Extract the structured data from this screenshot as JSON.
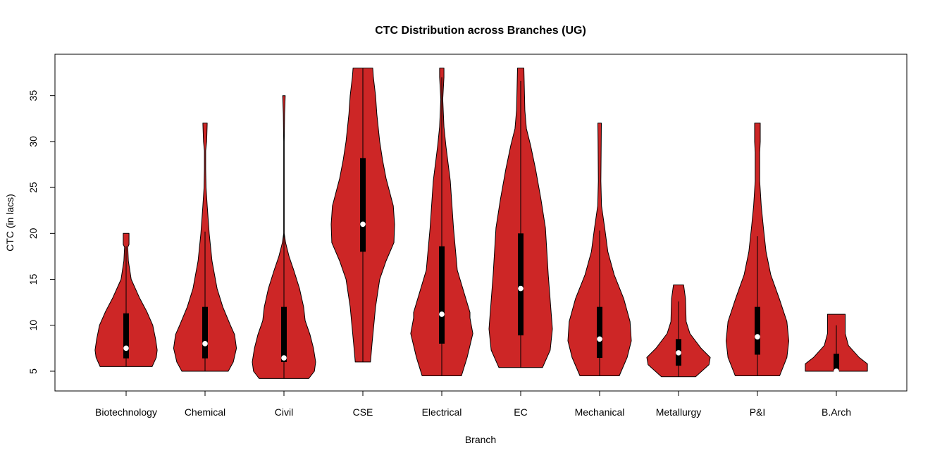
{
  "chart_data": {
    "type": "violin",
    "title": "CTC Distribution across Branches (UG)",
    "xlabel": "Branch",
    "ylabel": "CTC (in lacs)",
    "ylim": [
      2.85,
      39.5
    ],
    "yticks": [
      5,
      10,
      15,
      20,
      25,
      30,
      35
    ],
    "grid": false,
    "fill_color": "#CD2626",
    "categories": [
      "Biotechnology",
      "Chemical",
      "Civil",
      "CSE",
      "Electrical",
      "EC",
      "Mechanical",
      "Metallurgy",
      "P&I",
      "B.Arch"
    ],
    "series": [
      {
        "category": "Biotechnology",
        "min": 5.5,
        "max": 20,
        "q1": 6.4,
        "median": 7.5,
        "q3": 11.3,
        "whisker_low": 5.5,
        "whisker_high": 18.6,
        "density": [
          [
            5.5,
            0.82
          ],
          [
            6.5,
            0.95
          ],
          [
            7.3,
            0.98
          ],
          [
            8.5,
            0.93
          ],
          [
            10,
            0.84
          ],
          [
            11.5,
            0.65
          ],
          [
            13,
            0.42
          ],
          [
            15,
            0.16
          ],
          [
            17,
            0.07
          ],
          [
            18.5,
            0.05
          ],
          [
            18.8,
            0.09
          ],
          [
            20,
            0.09
          ]
        ]
      },
      {
        "category": "Chemical",
        "min": 5,
        "max": 32,
        "q1": 6.4,
        "median": 8,
        "q3": 12,
        "whisker_low": 5,
        "whisker_high": 20.2,
        "density": [
          [
            5,
            0.73
          ],
          [
            6,
            0.89
          ],
          [
            7.5,
            0.99
          ],
          [
            9,
            0.93
          ],
          [
            10,
            0.8
          ],
          [
            12,
            0.56
          ],
          [
            14,
            0.38
          ],
          [
            17,
            0.22
          ],
          [
            20,
            0.13
          ],
          [
            23,
            0.07
          ],
          [
            25,
            0.03
          ],
          [
            27,
            0.02
          ],
          [
            29,
            0.02
          ],
          [
            30,
            0.05
          ],
          [
            32,
            0.07
          ]
        ]
      },
      {
        "category": "Civil",
        "min": 4.2,
        "max": 35,
        "q1": 6,
        "median": 6.45,
        "q3": 12,
        "whisker_low": 4.2,
        "whisker_high": 21,
        "density": [
          [
            4.2,
            0.78
          ],
          [
            5,
            0.96
          ],
          [
            6,
            1
          ],
          [
            7.5,
            0.93
          ],
          [
            9,
            0.82
          ],
          [
            10.5,
            0.67
          ],
          [
            12,
            0.62
          ],
          [
            14,
            0.49
          ],
          [
            16,
            0.31
          ],
          [
            17.5,
            0.16
          ],
          [
            19,
            0.05
          ],
          [
            20,
            0.01
          ],
          [
            25,
            0.008
          ],
          [
            30,
            0.008
          ],
          [
            33,
            0.02
          ],
          [
            35,
            0.04
          ]
        ]
      },
      {
        "category": "CSE",
        "min": 6,
        "max": 38,
        "q1": 18,
        "median": 21,
        "q3": 28.2,
        "whisker_low": 6,
        "whisker_high": 38,
        "density": [
          [
            6,
            0.24
          ],
          [
            8,
            0.29
          ],
          [
            12,
            0.4
          ],
          [
            15,
            0.53
          ],
          [
            17,
            0.73
          ],
          [
            19,
            0.98
          ],
          [
            21,
            1
          ],
          [
            23,
            0.96
          ],
          [
            26,
            0.73
          ],
          [
            28,
            0.62
          ],
          [
            30,
            0.53
          ],
          [
            33,
            0.44
          ],
          [
            35,
            0.4
          ],
          [
            37,
            0.33
          ],
          [
            38,
            0.31
          ]
        ]
      },
      {
        "category": "Electrical",
        "min": 4.5,
        "max": 38,
        "q1": 8,
        "median": 11.2,
        "q3": 18.6,
        "whisker_low": 4.5,
        "whisker_high": 37,
        "density": [
          [
            4.5,
            0.62
          ],
          [
            6.5,
            0.8
          ],
          [
            9.1,
            0.98
          ],
          [
            10.8,
            0.89
          ],
          [
            11.4,
            0.89
          ],
          [
            16,
            0.49
          ],
          [
            20.6,
            0.37
          ],
          [
            25.7,
            0.27
          ],
          [
            29.5,
            0.13
          ],
          [
            31.6,
            0.07
          ],
          [
            34.6,
            0.03
          ],
          [
            37,
            0.07
          ],
          [
            38,
            0.07
          ]
        ]
      },
      {
        "category": "EC",
        "min": 5.4,
        "max": 38,
        "q1": 8.9,
        "median": 14,
        "q3": 20,
        "whisker_low": 5.4,
        "whisker_high": 36.6,
        "density": [
          [
            5.4,
            0.69
          ],
          [
            7.3,
            0.93
          ],
          [
            9.6,
            1
          ],
          [
            15.5,
            0.87
          ],
          [
            20.6,
            0.78
          ],
          [
            23.7,
            0.64
          ],
          [
            27,
            0.47
          ],
          [
            29.6,
            0.31
          ],
          [
            31.4,
            0.18
          ],
          [
            33.4,
            0.13
          ],
          [
            38,
            0.1
          ]
        ]
      },
      {
        "category": "Mechanical",
        "min": 4.5,
        "max": 32,
        "q1": 6.45,
        "median": 8.5,
        "q3": 12,
        "whisker_low": 4.5,
        "whisker_high": 20.3,
        "density": [
          [
            4.5,
            0.62
          ],
          [
            6.5,
            0.87
          ],
          [
            8.3,
            1
          ],
          [
            10.4,
            0.96
          ],
          [
            12.9,
            0.76
          ],
          [
            15.5,
            0.46
          ],
          [
            18,
            0.26
          ],
          [
            20.6,
            0.16
          ],
          [
            23,
            0.06
          ],
          [
            25.7,
            0.04
          ],
          [
            30,
            0.05
          ],
          [
            32,
            0.056
          ]
        ]
      },
      {
        "category": "Metallurgy",
        "min": 4.4,
        "max": 14.4,
        "q1": 5.6,
        "median": 7,
        "q3": 8.5,
        "whisker_low": 4.4,
        "whisker_high": 12.6,
        "density": [
          [
            4.4,
            0.54
          ],
          [
            5.7,
            0.96
          ],
          [
            6.5,
            1
          ],
          [
            7.5,
            0.71
          ],
          [
            9.1,
            0.36
          ],
          [
            10.4,
            0.24
          ],
          [
            12.9,
            0.22
          ],
          [
            14.4,
            0.16
          ]
        ]
      },
      {
        "category": "P&I",
        "min": 4.5,
        "max": 32,
        "q1": 6.8,
        "median": 8.75,
        "q3": 12,
        "whisker_low": 4.5,
        "whisker_high": 19.7,
        "density": [
          [
            4.5,
            0.7
          ],
          [
            6.5,
            0.93
          ],
          [
            8.3,
            0.99
          ],
          [
            10.4,
            0.93
          ],
          [
            12.9,
            0.69
          ],
          [
            15.5,
            0.42
          ],
          [
            18,
            0.27
          ],
          [
            20.6,
            0.19
          ],
          [
            23,
            0.12
          ],
          [
            25.7,
            0.07
          ],
          [
            28.8,
            0.07
          ],
          [
            30,
            0.09
          ],
          [
            32,
            0.09
          ]
        ]
      },
      {
        "category": "B.Arch",
        "min": 5,
        "max": 11.2,
        "q1": 5,
        "median": 5,
        "q3": 6.9,
        "whisker_low": 5,
        "whisker_high": 10,
        "density": [
          [
            5,
            0.98
          ],
          [
            5.8,
            0.98
          ],
          [
            6.5,
            0.72
          ],
          [
            7.8,
            0.38
          ],
          [
            9.1,
            0.28
          ],
          [
            11.2,
            0.28
          ]
        ]
      }
    ]
  }
}
